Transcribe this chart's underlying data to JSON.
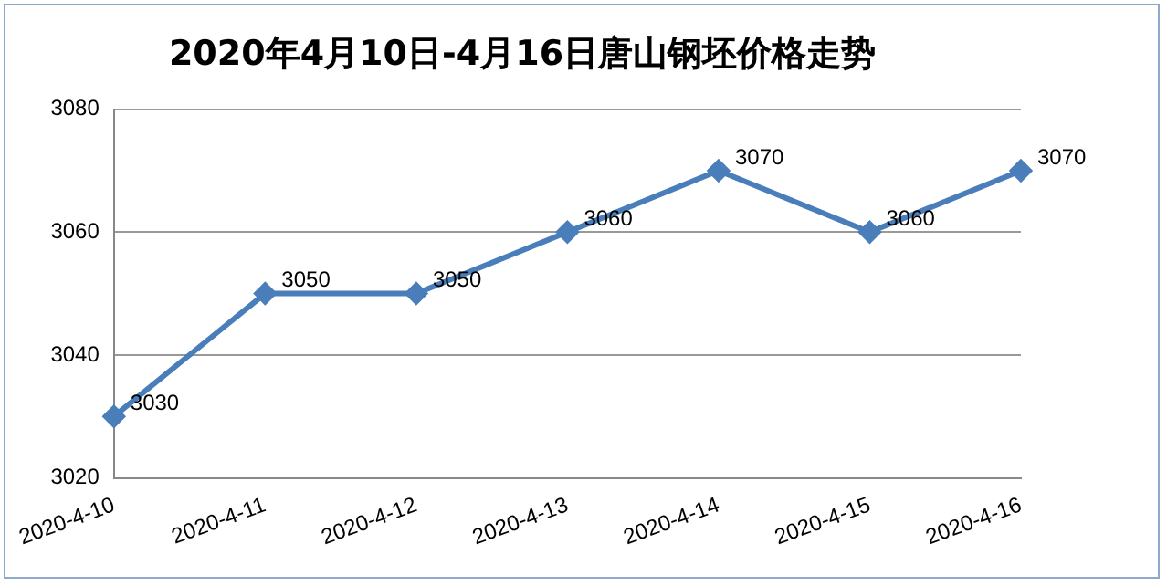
{
  "chart_data": {
    "type": "line",
    "title": "2020年4月10日-4月16日唐山钢坯价格走势",
    "categories": [
      "2020-4-10",
      "2020-4-11",
      "2020-4-12",
      "2020-4-13",
      "2020-4-14",
      "2020-4-15",
      "2020-4-16"
    ],
    "series": [
      {
        "color": "#4a7ebb",
        "values": [
          3030,
          3050,
          3050,
          3060,
          3070,
          3060,
          3070
        ]
      }
    ],
    "ylim": [
      3020,
      3080
    ],
    "yticks": [
      3020,
      3040,
      3060,
      3080
    ],
    "grid": "y",
    "legend": false,
    "marker": "diamond",
    "line_style": "solid",
    "data_labels": true
  }
}
